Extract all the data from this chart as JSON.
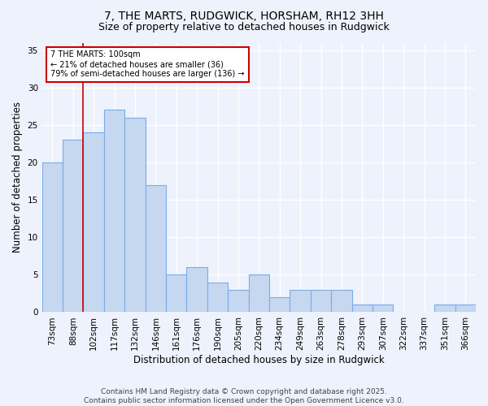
{
  "title1": "7, THE MARTS, RUDGWICK, HORSHAM, RH12 3HH",
  "title2": "Size of property relative to detached houses in Rudgwick",
  "xlabel": "Distribution of detached houses by size in Rudgwick",
  "ylabel": "Number of detached properties",
  "categories": [
    "73sqm",
    "88sqm",
    "102sqm",
    "117sqm",
    "132sqm",
    "146sqm",
    "161sqm",
    "176sqm",
    "190sqm",
    "205sqm",
    "220sqm",
    "234sqm",
    "249sqm",
    "263sqm",
    "278sqm",
    "293sqm",
    "307sqm",
    "322sqm",
    "337sqm",
    "351sqm",
    "366sqm"
  ],
  "values": [
    20,
    23,
    24,
    27,
    26,
    17,
    5,
    6,
    4,
    3,
    5,
    2,
    3,
    3,
    3,
    1,
    1,
    0,
    0,
    1,
    1
  ],
  "bar_color": "#c5d8f0",
  "bar_edge_color": "#7aabe8",
  "property_size_index": 2,
  "vline_color": "#cc0000",
  "annotation_text": "7 THE MARTS: 100sqm\n← 21% of detached houses are smaller (36)\n79% of semi-detached houses are larger (136) →",
  "annotation_box_color": "#ffffff",
  "annotation_box_edge_color": "#cc0000",
  "ylim": [
    0,
    36
  ],
  "yticks": [
    0,
    5,
    10,
    15,
    20,
    25,
    30,
    35
  ],
  "footnote": "Contains HM Land Registry data © Crown copyright and database right 2025.\nContains public sector information licensed under the Open Government Licence v3.0.",
  "bg_color": "#eef2fc",
  "grid_color": "#ffffff",
  "title_fontsize": 10,
  "subtitle_fontsize": 9,
  "axis_label_fontsize": 8.5,
  "tick_fontsize": 7.5,
  "footnote_fontsize": 6.5
}
